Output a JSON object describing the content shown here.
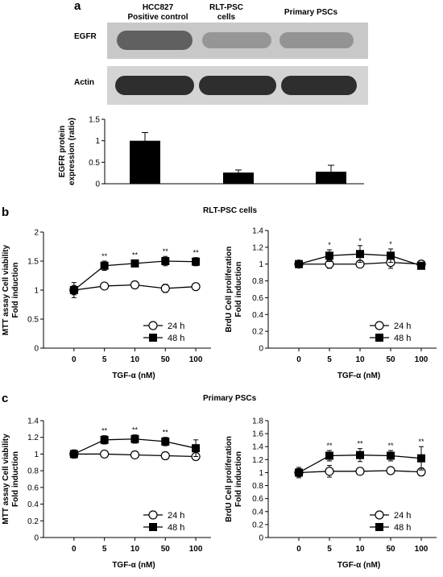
{
  "panel_a": {
    "letter": "a",
    "lanes": [
      "HCC827\nPositive control",
      "RLT-PSC\ncells",
      "Primary PSCs"
    ],
    "blot_labels": [
      "EGFR",
      "Actin"
    ]
  },
  "panel_b": {
    "letter": "b",
    "title": "RLT-PSC cells"
  },
  "panel_c": {
    "letter": "c",
    "title": "Primary PSCs"
  },
  "chart_data": [
    {
      "id": "a-bar",
      "type": "bar",
      "categories": [
        "HCC827 Positive control",
        "RLT-PSC cells",
        "Primary PSCs"
      ],
      "values": [
        1.0,
        0.26,
        0.28
      ],
      "errors": [
        0.19,
        0.06,
        0.15
      ],
      "ylabel": "EGFR protein\nexpression (ratio)",
      "ylim": [
        0,
        1.5
      ],
      "yticks": [
        "0",
        "0.5",
        "1",
        "1.5"
      ],
      "color": "#000000"
    },
    {
      "id": "b-mtt",
      "type": "line",
      "categories": [
        "0",
        "5",
        "10",
        "50",
        "100"
      ],
      "xlabel": "TGF-α (nM)",
      "ylabel": "MTT assay Cell viability\nFold induction",
      "ylim": [
        0,
        2
      ],
      "yticks": [
        "0",
        "0.5",
        "1",
        "1.5",
        "2"
      ],
      "legend": "bottom-right",
      "series": [
        {
          "name": "24 h",
          "marker": "circle",
          "values": [
            1.0,
            1.07,
            1.09,
            1.03,
            1.06
          ],
          "errors": [
            0.08,
            0.05,
            0.06,
            0.07,
            0.04
          ]
        },
        {
          "name": "48 h",
          "marker": "square",
          "values": [
            1.0,
            1.42,
            1.46,
            1.5,
            1.49
          ],
          "errors": [
            0.13,
            0.08,
            0.06,
            0.08,
            0.07
          ]
        }
      ],
      "annotations": [
        "",
        "**",
        "**",
        "**",
        "**"
      ]
    },
    {
      "id": "b-brdu",
      "type": "line",
      "categories": [
        "0",
        "5",
        "10",
        "50",
        "100"
      ],
      "xlabel": "TGF-α (nM)",
      "ylabel": "BrdU Cell proliferation\nFold induction",
      "ylim": [
        0,
        1.4
      ],
      "yticks": [
        "0",
        "0.2",
        "0.4",
        "0.6",
        "0.8",
        "1",
        "1.2",
        "1.4"
      ],
      "legend": "bottom-right",
      "series": [
        {
          "name": "24 h",
          "marker": "circle",
          "values": [
            1.0,
            1.0,
            1.0,
            1.02,
            1.0
          ],
          "errors": [
            0.03,
            0.05,
            0.04,
            0.07,
            0.04
          ]
        },
        {
          "name": "48 h",
          "marker": "square",
          "values": [
            1.0,
            1.1,
            1.12,
            1.1,
            0.98
          ],
          "errors": [
            0.04,
            0.07,
            0.1,
            0.08,
            0.04
          ]
        }
      ],
      "annotations": [
        "",
        "*",
        "*",
        "*",
        ""
      ]
    },
    {
      "id": "c-mtt",
      "type": "line",
      "categories": [
        "0",
        "5",
        "10",
        "50",
        "100"
      ],
      "xlabel": "TGF-α (nM)",
      "ylabel": "MTT assay Cell viability\nFold induction",
      "ylim": [
        0,
        1.4
      ],
      "yticks": [
        "0",
        "0.2",
        "0.4",
        "0.6",
        "0.8",
        "1",
        "1.2",
        "1.4"
      ],
      "legend": "bottom-right",
      "series": [
        {
          "name": "24 h",
          "marker": "circle",
          "values": [
            1.0,
            1.0,
            0.99,
            0.98,
            0.97
          ],
          "errors": [
            0.03,
            0.02,
            0.02,
            0.02,
            0.02
          ]
        },
        {
          "name": "48 h",
          "marker": "square",
          "values": [
            1.0,
            1.17,
            1.18,
            1.15,
            1.07
          ],
          "errors": [
            0.05,
            0.05,
            0.05,
            0.05,
            0.1
          ]
        }
      ],
      "annotations": [
        "",
        "**",
        "**",
        "**",
        ""
      ]
    },
    {
      "id": "c-brdu",
      "type": "line",
      "categories": [
        "0",
        "5",
        "10",
        "50",
        "100"
      ],
      "xlabel": "TGF-α (nM)",
      "ylabel": "BrdU Cell proliferation\nFold induction",
      "ylim": [
        0,
        1.8
      ],
      "yticks": [
        "0",
        "0.2",
        "0.4",
        "0.6",
        "0.8",
        "1",
        "1.2",
        "1.4",
        "1.6",
        "1.8"
      ],
      "legend": "bottom-right",
      "series": [
        {
          "name": "24 h",
          "marker": "circle",
          "values": [
            1.0,
            1.02,
            1.02,
            1.03,
            1.01
          ],
          "errors": [
            0.06,
            0.09,
            0.05,
            0.03,
            0.06
          ]
        },
        {
          "name": "48 h",
          "marker": "square",
          "values": [
            1.0,
            1.26,
            1.27,
            1.26,
            1.22
          ],
          "errors": [
            0.08,
            0.08,
            0.1,
            0.08,
            0.18
          ]
        }
      ],
      "annotations": [
        "",
        "**",
        "**",
        "**",
        "**"
      ]
    }
  ]
}
